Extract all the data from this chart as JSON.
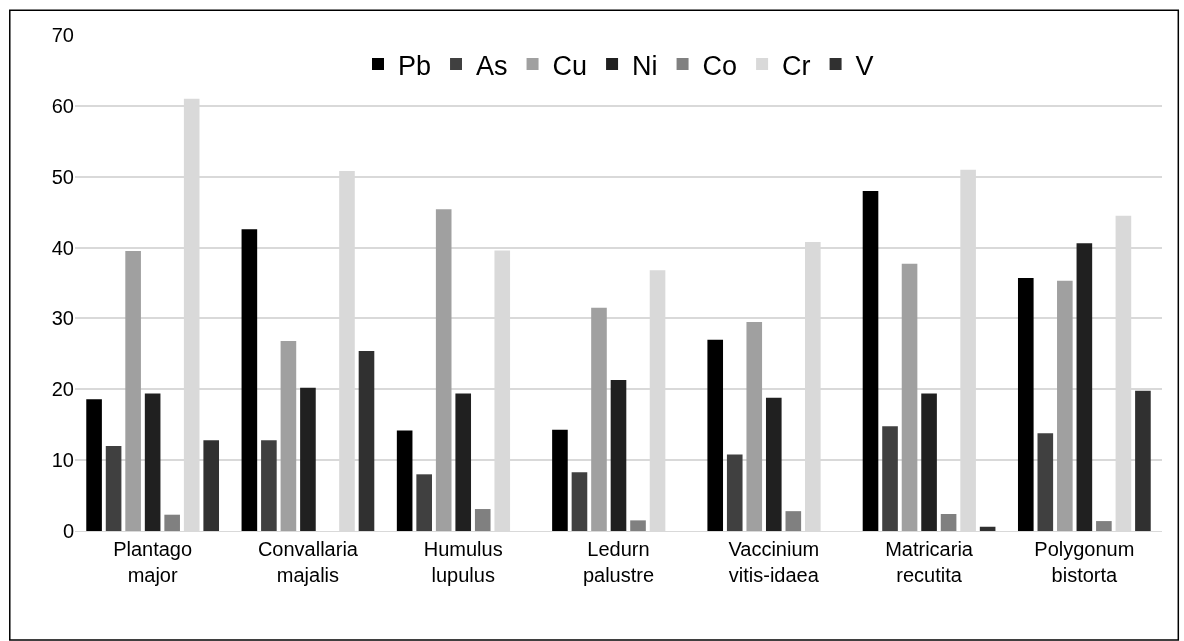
{
  "chart_data": {
    "type": "bar",
    "categories": [
      "Plantago major",
      "Convallaria majalis",
      "Humulus lupulus",
      "Ledurn palustre",
      "Vaccinium vitis-idaea",
      "Matricaria recutita",
      "Polygonum bistorta"
    ],
    "series": [
      {
        "name": "Pb",
        "color": "#000000",
        "values": [
          18.6,
          42.6,
          14.2,
          14.3,
          27,
          48,
          35.7
        ]
      },
      {
        "name": "As",
        "color": "#404040",
        "values": [
          12,
          12.8,
          8,
          8.3,
          10.8,
          14.8,
          13.8
        ]
      },
      {
        "name": "Cu",
        "color": "#a0a0a0",
        "values": [
          39.5,
          26.8,
          45.4,
          31.5,
          29.5,
          37.7,
          35.3
        ]
      },
      {
        "name": "Ni",
        "color": "#202020",
        "values": [
          19.4,
          20.2,
          19.4,
          21.3,
          18.8,
          19.4,
          40.6
        ]
      },
      {
        "name": "Co",
        "color": "#808080",
        "values": [
          2.3,
          null,
          3.1,
          1.5,
          2.8,
          2.4,
          1.4
        ]
      },
      {
        "name": "Cr",
        "color": "#d9d9d9",
        "values": [
          61,
          50.8,
          39.6,
          36.8,
          40.8,
          51,
          44.5
        ]
      },
      {
        "name": "V",
        "color": "#303030",
        "values": [
          12.8,
          25.4,
          null,
          null,
          null,
          0.6,
          19.8
        ]
      }
    ],
    "ylim": [
      0,
      70
    ],
    "yticks": [
      0,
      10,
      20,
      30,
      40,
      50,
      60,
      70
    ],
    "grid": "y",
    "legend": "top"
  }
}
